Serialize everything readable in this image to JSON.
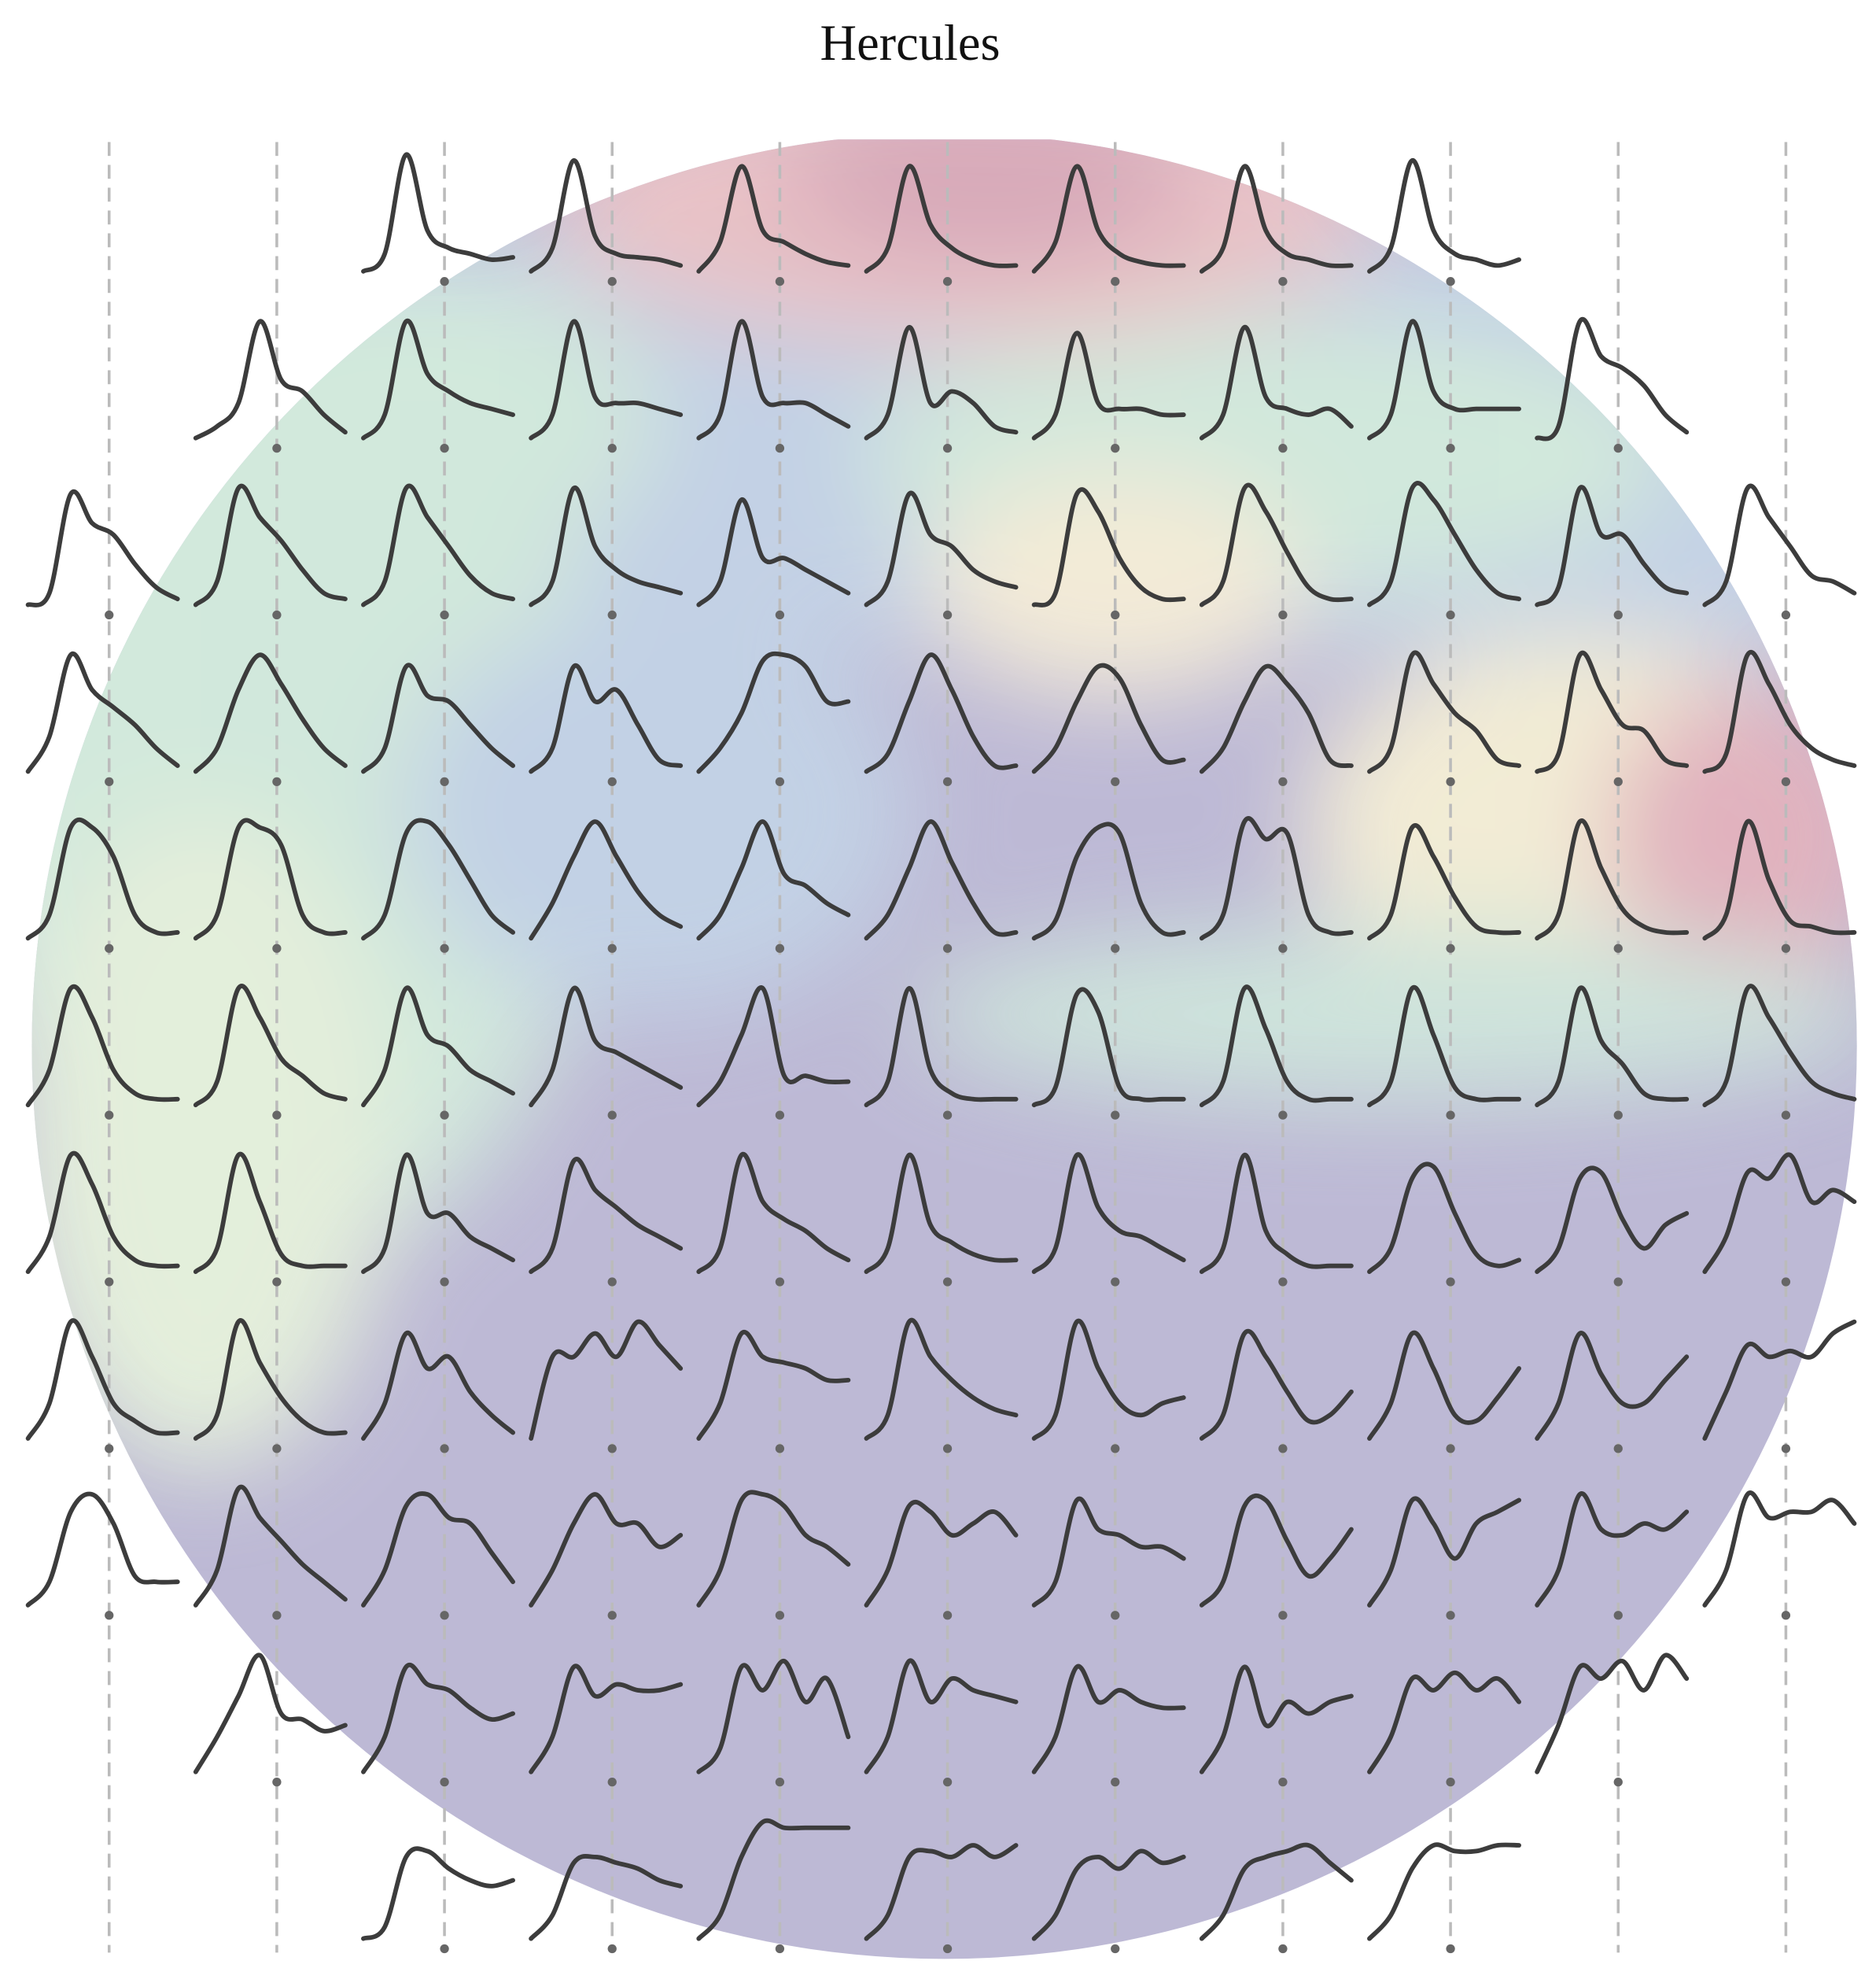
{
  "chart_data": {
    "type": "small-multiples-line",
    "title": "Hercules",
    "ylim": [
      0,
      1
    ],
    "profiles": [
      [
        null,
        null,
        [
          0,
          0.15,
          1,
          0.35,
          0.2,
          0.15,
          0.1,
          0.12
        ],
        [
          0,
          0.2,
          0.95,
          0.3,
          0.15,
          0.12,
          0.1,
          0.05
        ],
        [
          0,
          0.25,
          0.9,
          0.35,
          0.25,
          0.15,
          0.08,
          0.05
        ],
        [
          0,
          0.2,
          0.9,
          0.4,
          0.2,
          0.1,
          0.05,
          0.05
        ],
        [
          0,
          0.25,
          0.9,
          0.35,
          0.15,
          0.08,
          0.05,
          0.05
        ],
        [
          0,
          0.2,
          0.9,
          0.35,
          0.15,
          0.1,
          0.05,
          0.05
        ],
        [
          0,
          0.2,
          0.95,
          0.35,
          0.15,
          0.1,
          0.05,
          0.1
        ],
        null,
        null
      ],
      [
        null,
        [
          0,
          0.1,
          0.3,
          1,
          0.5,
          0.4,
          0.2,
          0.05
        ],
        [
          0,
          0.2,
          1,
          0.55,
          0.4,
          0.3,
          0.25,
          0.2
        ],
        [
          0,
          0.2,
          1,
          0.35,
          0.3,
          0.3,
          0.25,
          0.2
        ],
        [
          0,
          0.2,
          1,
          0.35,
          0.3,
          0.3,
          0.2,
          0.1
        ],
        [
          0,
          0.2,
          0.95,
          0.3,
          0.4,
          0.3,
          0.1,
          0.05
        ],
        [
          0,
          0.2,
          0.9,
          0.3,
          0.25,
          0.25,
          0.2,
          0.2
        ],
        [
          0,
          0.2,
          0.95,
          0.35,
          0.25,
          0.2,
          0.25,
          0.1
        ],
        [
          0,
          0.2,
          1,
          0.4,
          0.25,
          0.25,
          0.25,
          0.25
        ],
        [
          0,
          0.1,
          1,
          0.7,
          0.6,
          0.45,
          0.2,
          0.05
        ],
        null
      ],
      [
        [
          0,
          0.1,
          0.95,
          0.7,
          0.6,
          0.35,
          0.15,
          0.05
        ],
        [
          0,
          0.2,
          1,
          0.75,
          0.55,
          0.3,
          0.1,
          0.05
        ],
        [
          0,
          0.2,
          1,
          0.75,
          0.5,
          0.25,
          0.1,
          0.05
        ],
        [
          0,
          0.2,
          1,
          0.5,
          0.3,
          0.2,
          0.15,
          0.1
        ],
        [
          0,
          0.2,
          0.9,
          0.4,
          0.4,
          0.3,
          0.2,
          0.1
        ],
        [
          0,
          0.2,
          0.95,
          0.6,
          0.5,
          0.3,
          0.2,
          0.15
        ],
        [
          0,
          0.1,
          0.95,
          0.8,
          0.4,
          0.15,
          0.05,
          0.05
        ],
        [
          0,
          0.2,
          1,
          0.8,
          0.45,
          0.15,
          0.05,
          0.05
        ],
        [
          0,
          0.2,
          1,
          0.9,
          0.6,
          0.3,
          0.1,
          0.05
        ],
        [
          0,
          0.15,
          1,
          0.6,
          0.6,
          0.35,
          0.15,
          0.1
        ],
        [
          0,
          0.2,
          1,
          0.75,
          0.5,
          0.25,
          0.2,
          0.1
        ]
      ],
      [
        [
          0,
          0.3,
          1,
          0.7,
          0.55,
          0.4,
          0.2,
          0.05
        ],
        [
          0,
          0.2,
          0.7,
          1,
          0.75,
          0.45,
          0.2,
          0.05
        ],
        [
          0,
          0.2,
          0.9,
          0.65,
          0.6,
          0.4,
          0.2,
          0.05
        ],
        [
          0,
          0.2,
          0.9,
          0.6,
          0.7,
          0.4,
          0.1,
          0.05
        ],
        [
          0,
          0.2,
          0.5,
          0.95,
          1,
          0.9,
          0.6,
          0.6
        ],
        [
          0,
          0.15,
          0.6,
          1,
          0.7,
          0.3,
          0.05,
          0.05
        ],
        [
          0,
          0.2,
          0.6,
          0.9,
          0.8,
          0.4,
          0.1,
          0.1
        ],
        [
          0,
          0.2,
          0.6,
          0.9,
          0.75,
          0.5,
          0.1,
          0.05
        ],
        [
          0,
          0.2,
          1,
          0.75,
          0.5,
          0.35,
          0.1,
          0.05
        ],
        [
          0,
          0.15,
          1,
          0.7,
          0.4,
          0.35,
          0.1,
          0.05
        ],
        [
          0,
          0.15,
          1,
          0.75,
          0.4,
          0.2,
          0.1,
          0.05
        ]
      ],
      [
        [
          0,
          0.2,
          0.95,
          0.95,
          0.7,
          0.2,
          0.05,
          0.05
        ],
        [
          0,
          0.2,
          0.95,
          0.95,
          0.8,
          0.2,
          0.05,
          0.05
        ],
        [
          0,
          0.2,
          0.9,
          1,
          0.8,
          0.5,
          0.2,
          0.05
        ],
        [
          0,
          0.3,
          0.7,
          1,
          0.7,
          0.4,
          0.2,
          0.1
        ],
        [
          0,
          0.2,
          0.6,
          1,
          0.55,
          0.45,
          0.3,
          0.2
        ],
        [
          0,
          0.2,
          0.6,
          1,
          0.65,
          0.3,
          0.05,
          0.05
        ],
        [
          0,
          0.15,
          0.7,
          0.95,
          0.9,
          0.3,
          0.05,
          0.05
        ],
        [
          0,
          0.2,
          1,
          0.85,
          0.9,
          0.2,
          0.05,
          0.05
        ],
        [
          0,
          0.2,
          0.95,
          0.7,
          0.35,
          0.1,
          0.05,
          0.05
        ],
        [
          0,
          0.2,
          1,
          0.6,
          0.25,
          0.1,
          0.05,
          0.05
        ],
        [
          0,
          0.2,
          1,
          0.5,
          0.15,
          0.1,
          0.05,
          0.05
        ]
      ],
      [
        [
          0,
          0.3,
          1,
          0.75,
          0.3,
          0.1,
          0.05,
          0.05
        ],
        [
          0,
          0.2,
          1,
          0.75,
          0.4,
          0.25,
          0.1,
          0.05
        ],
        [
          0,
          0.3,
          1,
          0.6,
          0.5,
          0.3,
          0.2,
          0.1
        ],
        [
          0,
          0.3,
          1,
          0.55,
          0.45,
          0.35,
          0.25,
          0.15
        ],
        [
          0,
          0.2,
          0.6,
          1,
          0.25,
          0.25,
          0.2,
          0.2
        ],
        [
          0,
          0.2,
          1,
          0.3,
          0.1,
          0.05,
          0.05,
          0.05
        ],
        [
          0,
          0.15,
          0.95,
          0.8,
          0.15,
          0.05,
          0.05,
          0.05
        ],
        [
          0,
          0.2,
          1,
          0.65,
          0.2,
          0.05,
          0.05,
          0.05
        ],
        [
          0,
          0.2,
          1,
          0.6,
          0.15,
          0.05,
          0.05,
          0.05
        ],
        [
          0,
          0.2,
          1,
          0.55,
          0.35,
          0.1,
          0.05,
          0.05
        ],
        [
          0,
          0.2,
          1,
          0.75,
          0.45,
          0.2,
          0.1,
          0.05
        ]
      ],
      [
        [
          0,
          0.3,
          1,
          0.75,
          0.3,
          0.1,
          0.05,
          0.05
        ],
        [
          0,
          0.2,
          1,
          0.6,
          0.15,
          0.05,
          0.05,
          0.05
        ],
        [
          0,
          0.2,
          1,
          0.5,
          0.5,
          0.3,
          0.2,
          0.1
        ],
        [
          0,
          0.2,
          0.95,
          0.7,
          0.55,
          0.4,
          0.3,
          0.2
        ],
        [
          0,
          0.2,
          1,
          0.6,
          0.45,
          0.35,
          0.2,
          0.1
        ],
        [
          0,
          0.2,
          1,
          0.4,
          0.25,
          0.15,
          0.1,
          0.1
        ],
        [
          0,
          0.2,
          1,
          0.55,
          0.35,
          0.3,
          0.2,
          0.1
        ],
        [
          0,
          0.2,
          1,
          0.35,
          0.15,
          0.05,
          0.05,
          0.05
        ],
        [
          0,
          0.2,
          0.8,
          0.9,
          0.5,
          0.15,
          0.05,
          0.1
        ],
        [
          0,
          0.2,
          0.8,
          0.85,
          0.45,
          0.2,
          0.4,
          0.5
        ],
        [
          0,
          0.3,
          0.85,
          0.8,
          1,
          0.6,
          0.7,
          0.6
        ]
      ],
      [
        [
          0,
          0.3,
          1,
          0.7,
          0.3,
          0.15,
          0.05,
          0.05
        ],
        [
          0,
          0.2,
          1,
          0.65,
          0.35,
          0.15,
          0.05,
          0.05
        ],
        [
          0,
          0.3,
          0.9,
          0.6,
          0.7,
          0.4,
          0.2,
          0.05
        ],
        [
          0,
          0.7,
          0.7,
          0.9,
          0.7,
          1,
          0.8,
          0.6
        ],
        [
          0,
          0.3,
          0.9,
          0.7,
          0.65,
          0.6,
          0.5,
          0.5
        ],
        [
          0,
          0.2,
          1,
          0.7,
          0.5,
          0.35,
          0.25,
          0.2
        ],
        [
          0,
          0.2,
          1,
          0.6,
          0.3,
          0.2,
          0.3,
          0.35
        ],
        [
          0,
          0.2,
          0.9,
          0.7,
          0.4,
          0.15,
          0.2,
          0.4
        ],
        [
          0,
          0.3,
          0.9,
          0.6,
          0.2,
          0.15,
          0.35,
          0.6
        ],
        [
          0,
          0.3,
          0.9,
          0.55,
          0.3,
          0.3,
          0.5,
          0.7
        ],
        [
          0,
          0.4,
          0.8,
          0.7,
          0.75,
          0.7,
          0.9,
          1
        ]
      ],
      [
        [
          0,
          0.2,
          0.8,
          0.95,
          0.7,
          0.25,
          0.2,
          0.2
        ],
        [
          0,
          0.3,
          1,
          0.75,
          0.55,
          0.35,
          0.2,
          0.05
        ],
        [
          0,
          0.3,
          0.85,
          0.95,
          0.75,
          0.7,
          0.45,
          0.2
        ],
        [
          0,
          0.3,
          0.7,
          0.95,
          0.7,
          0.7,
          0.5,
          0.6
        ],
        [
          0,
          0.3,
          0.9,
          0.95,
          0.85,
          0.6,
          0.5,
          0.35
        ],
        [
          0,
          0.3,
          0.85,
          0.8,
          0.6,
          0.7,
          0.8,
          0.6
        ],
        [
          0,
          0.2,
          0.9,
          0.65,
          0.6,
          0.5,
          0.5,
          0.4
        ],
        [
          0,
          0.2,
          0.85,
          0.9,
          0.55,
          0.25,
          0.4,
          0.65
        ],
        [
          0,
          0.3,
          0.9,
          0.7,
          0.4,
          0.7,
          0.8,
          0.9
        ],
        [
          0,
          0.3,
          0.95,
          0.65,
          0.6,
          0.7,
          0.65,
          0.8
        ],
        [
          0,
          0.3,
          0.95,
          0.75,
          0.8,
          0.8,
          0.9,
          0.7
        ]
      ],
      [
        null,
        [
          0,
          0.3,
          0.65,
          1,
          0.5,
          0.45,
          0.35,
          0.4
        ],
        [
          0,
          0.3,
          0.9,
          0.75,
          0.7,
          0.55,
          0.45,
          0.5
        ],
        [
          0,
          0.3,
          0.9,
          0.65,
          0.75,
          0.7,
          0.7,
          0.75
        ],
        [
          0,
          0.2,
          0.9,
          0.7,
          0.95,
          0.6,
          0.8,
          0.3
        ],
        [
          0,
          0.3,
          0.95,
          0.6,
          0.8,
          0.7,
          0.65,
          0.6
        ],
        [
          0,
          0.3,
          0.9,
          0.6,
          0.7,
          0.6,
          0.55,
          0.55
        ],
        [
          0,
          0.3,
          0.9,
          0.4,
          0.6,
          0.5,
          0.6,
          0.65
        ],
        [
          0,
          0.3,
          0.8,
          0.7,
          0.85,
          0.7,
          0.8,
          0.6
        ],
        [
          0,
          0.4,
          0.9,
          0.8,
          0.95,
          0.7,
          1,
          0.8
        ],
        null
      ],
      [
        null,
        null,
        [
          0,
          0.1,
          0.7,
          0.75,
          0.6,
          0.5,
          0.45,
          0.5
        ],
        [
          0,
          0.2,
          0.65,
          0.7,
          0.65,
          0.6,
          0.5,
          0.45
        ],
        [
          0,
          0.2,
          0.7,
          1,
          0.95,
          0.95,
          0.95,
          0.95
        ],
        [
          0,
          0.2,
          0.7,
          0.75,
          0.7,
          0.8,
          0.7,
          0.8
        ],
        [
          0,
          0.2,
          0.6,
          0.7,
          0.6,
          0.75,
          0.65,
          0.7
        ],
        [
          0,
          0.2,
          0.6,
          0.7,
          0.75,
          0.8,
          0.65,
          0.5
        ],
        [
          0,
          0.2,
          0.6,
          0.8,
          0.75,
          0.75,
          0.8,
          0.8
        ],
        null,
        null
      ]
    ]
  }
}
